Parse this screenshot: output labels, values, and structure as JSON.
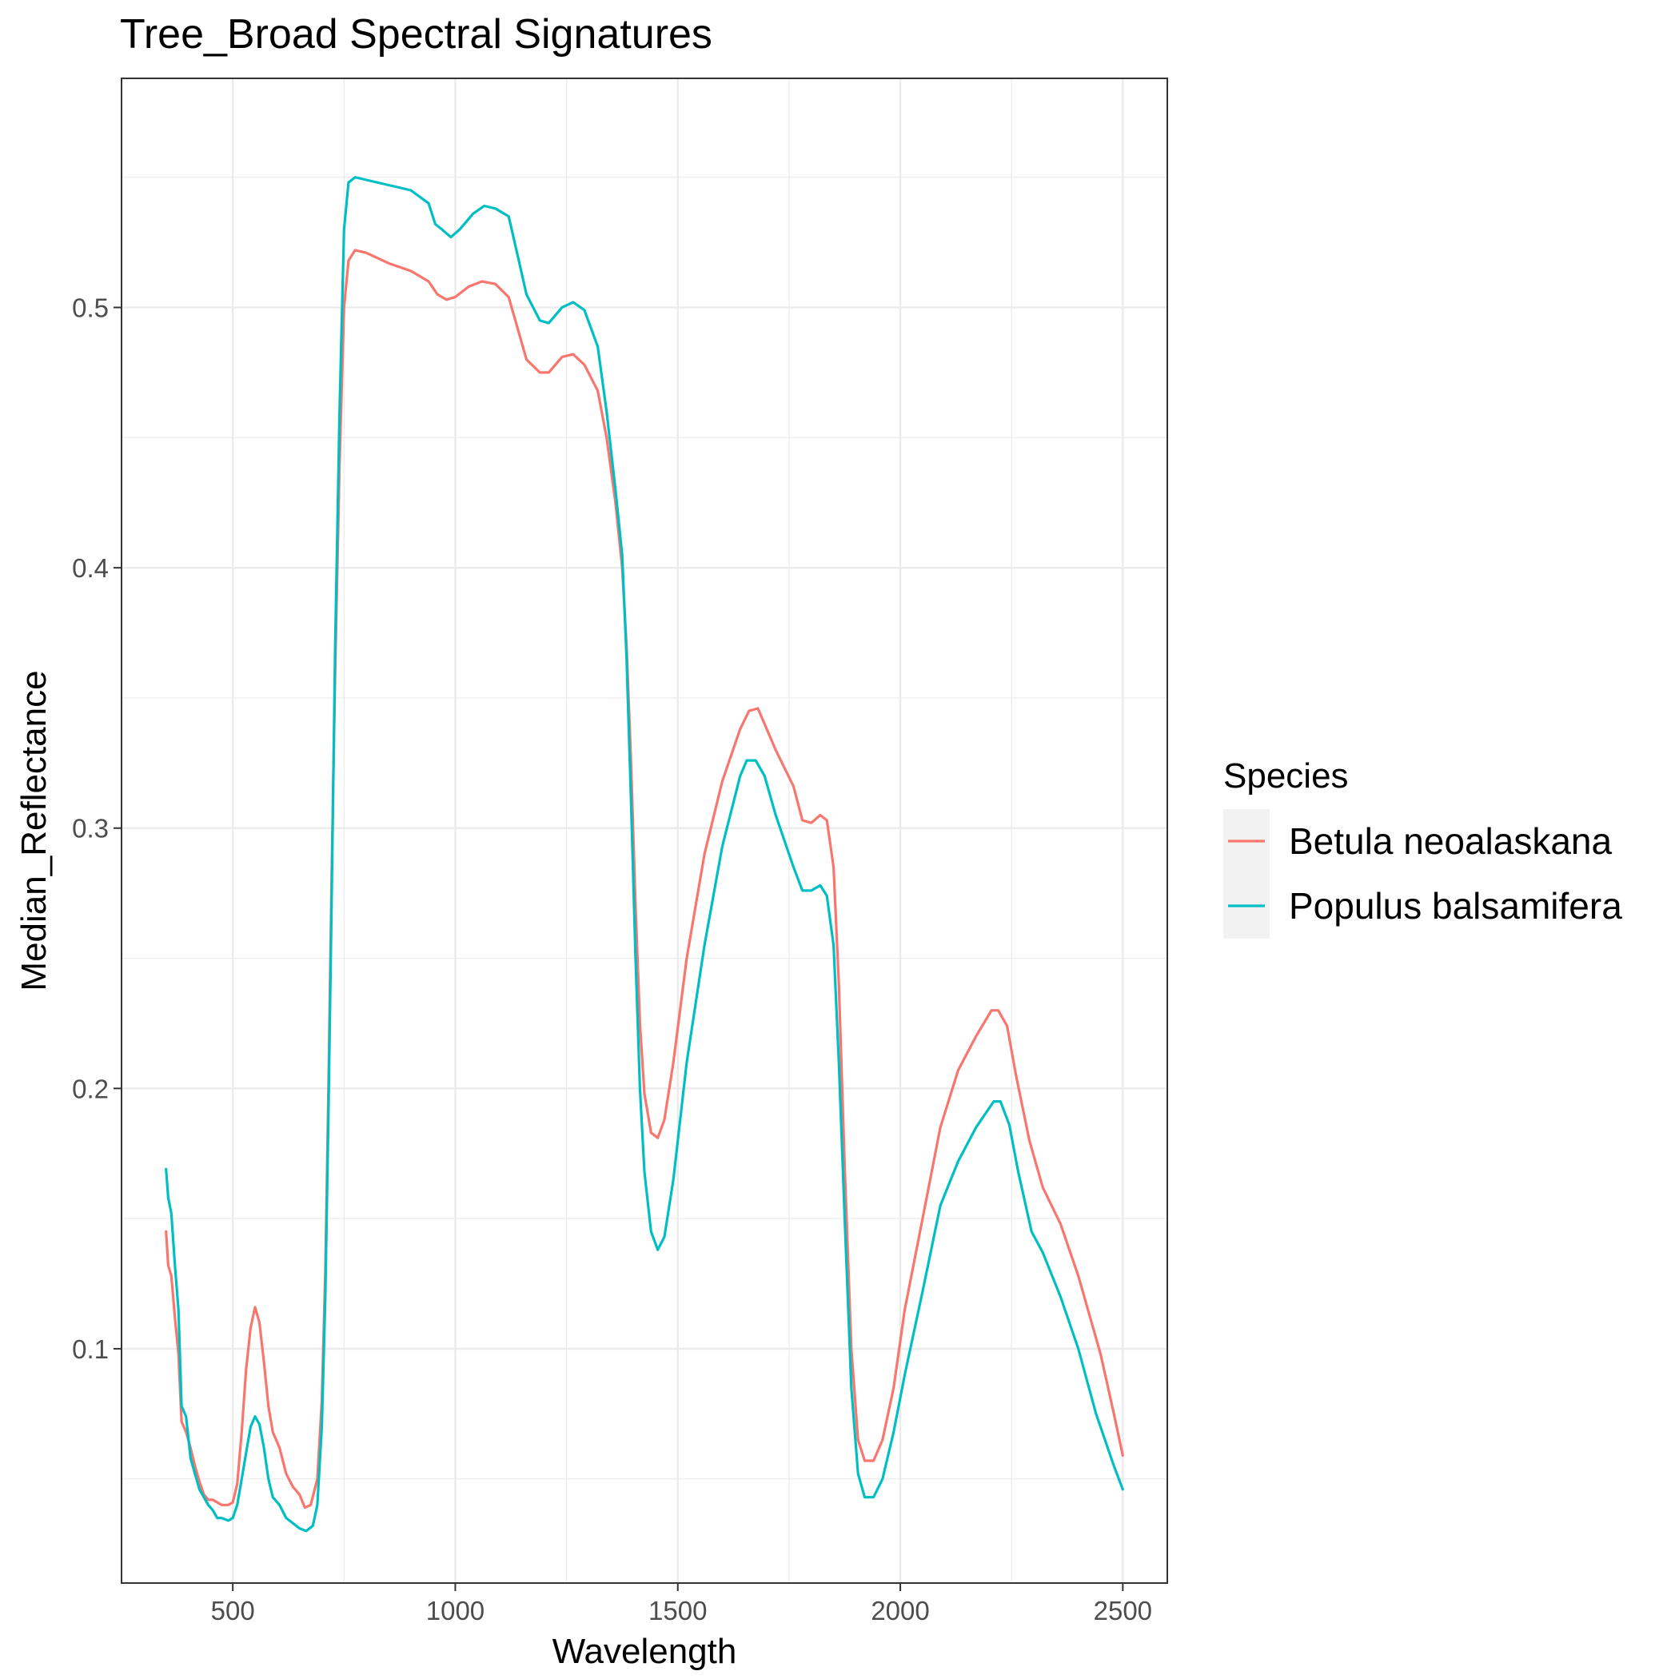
{
  "chart_data": {
    "type": "line",
    "title": "Tree_Broad Spectral Signatures",
    "xlabel": "Wavelength",
    "ylabel": "Median_Reflectance",
    "xlim": [
      250,
      2600
    ],
    "ylim": [
      0.01,
      0.588
    ],
    "x_ticks": [
      {
        "value": 500,
        "label": "500"
      },
      {
        "value": 1000,
        "label": "1000"
      },
      {
        "value": 1500,
        "label": "1500"
      },
      {
        "value": 2000,
        "label": "2000"
      },
      {
        "value": 2500,
        "label": "2500"
      }
    ],
    "y_ticks": [
      {
        "value": 0.1,
        "label": "0.1"
      },
      {
        "value": 0.2,
        "label": "0.2"
      },
      {
        "value": 0.3,
        "label": "0.3"
      },
      {
        "value": 0.4,
        "label": "0.4"
      },
      {
        "value": 0.5,
        "label": "0.5"
      }
    ],
    "grid": true,
    "legend": {
      "title": "Species",
      "position": "right"
    },
    "series": [
      {
        "name": "Betula neoalaskana",
        "color": "#F8766D",
        "points": [
          [
            350,
            0.145
          ],
          [
            355,
            0.132
          ],
          [
            362,
            0.128
          ],
          [
            370,
            0.112
          ],
          [
            378,
            0.098
          ],
          [
            385,
            0.072
          ],
          [
            395,
            0.068
          ],
          [
            405,
            0.062
          ],
          [
            415,
            0.055
          ],
          [
            425,
            0.049
          ],
          [
            435,
            0.044
          ],
          [
            445,
            0.042
          ],
          [
            455,
            0.042
          ],
          [
            465,
            0.041
          ],
          [
            475,
            0.04
          ],
          [
            490,
            0.04
          ],
          [
            500,
            0.041
          ],
          [
            510,
            0.048
          ],
          [
            520,
            0.068
          ],
          [
            530,
            0.092
          ],
          [
            540,
            0.108
          ],
          [
            550,
            0.116
          ],
          [
            560,
            0.11
          ],
          [
            570,
            0.095
          ],
          [
            580,
            0.078
          ],
          [
            590,
            0.068
          ],
          [
            605,
            0.062
          ],
          [
            620,
            0.052
          ],
          [
            635,
            0.047
          ],
          [
            650,
            0.044
          ],
          [
            662,
            0.039
          ],
          [
            675,
            0.04
          ],
          [
            690,
            0.05
          ],
          [
            700,
            0.08
          ],
          [
            708,
            0.13
          ],
          [
            715,
            0.2
          ],
          [
            722,
            0.28
          ],
          [
            730,
            0.36
          ],
          [
            740,
            0.44
          ],
          [
            750,
            0.5
          ],
          [
            760,
            0.518
          ],
          [
            775,
            0.522
          ],
          [
            800,
            0.521
          ],
          [
            850,
            0.517
          ],
          [
            900,
            0.514
          ],
          [
            940,
            0.51
          ],
          [
            960,
            0.505
          ],
          [
            980,
            0.503
          ],
          [
            1000,
            0.504
          ],
          [
            1030,
            0.508
          ],
          [
            1060,
            0.51
          ],
          [
            1090,
            0.509
          ],
          [
            1120,
            0.504
          ],
          [
            1140,
            0.492
          ],
          [
            1160,
            0.48
          ],
          [
            1190,
            0.475
          ],
          [
            1210,
            0.475
          ],
          [
            1240,
            0.481
          ],
          [
            1265,
            0.482
          ],
          [
            1290,
            0.478
          ],
          [
            1320,
            0.468
          ],
          [
            1340,
            0.45
          ],
          [
            1360,
            0.425
          ],
          [
            1375,
            0.4
          ],
          [
            1385,
            0.37
          ],
          [
            1395,
            0.325
          ],
          [
            1405,
            0.27
          ],
          [
            1415,
            0.225
          ],
          [
            1425,
            0.198
          ],
          [
            1440,
            0.183
          ],
          [
            1455,
            0.181
          ],
          [
            1470,
            0.188
          ],
          [
            1490,
            0.21
          ],
          [
            1520,
            0.25
          ],
          [
            1560,
            0.29
          ],
          [
            1600,
            0.318
          ],
          [
            1640,
            0.338
          ],
          [
            1660,
            0.345
          ],
          [
            1680,
            0.346
          ],
          [
            1700,
            0.338
          ],
          [
            1720,
            0.33
          ],
          [
            1760,
            0.316
          ],
          [
            1780,
            0.303
          ],
          [
            1800,
            0.302
          ],
          [
            1820,
            0.305
          ],
          [
            1835,
            0.303
          ],
          [
            1850,
            0.285
          ],
          [
            1862,
            0.24
          ],
          [
            1875,
            0.17
          ],
          [
            1890,
            0.1
          ],
          [
            1905,
            0.065
          ],
          [
            1920,
            0.057
          ],
          [
            1940,
            0.057
          ],
          [
            1960,
            0.065
          ],
          [
            1985,
            0.085
          ],
          [
            2010,
            0.115
          ],
          [
            2050,
            0.15
          ],
          [
            2090,
            0.185
          ],
          [
            2130,
            0.207
          ],
          [
            2170,
            0.22
          ],
          [
            2205,
            0.23
          ],
          [
            2220,
            0.23
          ],
          [
            2240,
            0.224
          ],
          [
            2260,
            0.205
          ],
          [
            2290,
            0.18
          ],
          [
            2320,
            0.162
          ],
          [
            2360,
            0.148
          ],
          [
            2400,
            0.128
          ],
          [
            2450,
            0.098
          ],
          [
            2480,
            0.075
          ],
          [
            2500,
            0.059
          ]
        ]
      },
      {
        "name": "Populus balsamifera",
        "color": "#00BFC4",
        "points": [
          [
            350,
            0.169
          ],
          [
            355,
            0.158
          ],
          [
            362,
            0.152
          ],
          [
            370,
            0.132
          ],
          [
            378,
            0.115
          ],
          [
            385,
            0.078
          ],
          [
            395,
            0.074
          ],
          [
            405,
            0.058
          ],
          [
            415,
            0.052
          ],
          [
            425,
            0.046
          ],
          [
            435,
            0.043
          ],
          [
            445,
            0.04
          ],
          [
            455,
            0.038
          ],
          [
            465,
            0.035
          ],
          [
            475,
            0.035
          ],
          [
            490,
            0.034
          ],
          [
            500,
            0.035
          ],
          [
            510,
            0.04
          ],
          [
            520,
            0.05
          ],
          [
            530,
            0.06
          ],
          [
            540,
            0.07
          ],
          [
            550,
            0.074
          ],
          [
            560,
            0.071
          ],
          [
            570,
            0.062
          ],
          [
            580,
            0.05
          ],
          [
            590,
            0.043
          ],
          [
            605,
            0.04
          ],
          [
            620,
            0.035
          ],
          [
            635,
            0.033
          ],
          [
            650,
            0.031
          ],
          [
            665,
            0.03
          ],
          [
            680,
            0.032
          ],
          [
            690,
            0.04
          ],
          [
            700,
            0.07
          ],
          [
            708,
            0.12
          ],
          [
            715,
            0.19
          ],
          [
            722,
            0.27
          ],
          [
            730,
            0.37
          ],
          [
            740,
            0.46
          ],
          [
            750,
            0.53
          ],
          [
            760,
            0.548
          ],
          [
            775,
            0.55
          ],
          [
            800,
            0.549
          ],
          [
            850,
            0.547
          ],
          [
            900,
            0.545
          ],
          [
            940,
            0.54
          ],
          [
            955,
            0.532
          ],
          [
            970,
            0.53
          ],
          [
            990,
            0.527
          ],
          [
            1010,
            0.53
          ],
          [
            1040,
            0.536
          ],
          [
            1065,
            0.539
          ],
          [
            1090,
            0.538
          ],
          [
            1120,
            0.535
          ],
          [
            1140,
            0.52
          ],
          [
            1160,
            0.505
          ],
          [
            1190,
            0.495
          ],
          [
            1210,
            0.494
          ],
          [
            1240,
            0.5
          ],
          [
            1265,
            0.502
          ],
          [
            1290,
            0.499
          ],
          [
            1320,
            0.485
          ],
          [
            1340,
            0.46
          ],
          [
            1360,
            0.43
          ],
          [
            1375,
            0.405
          ],
          [
            1385,
            0.365
          ],
          [
            1395,
            0.31
          ],
          [
            1405,
            0.25
          ],
          [
            1415,
            0.2
          ],
          [
            1425,
            0.168
          ],
          [
            1440,
            0.145
          ],
          [
            1455,
            0.138
          ],
          [
            1470,
            0.143
          ],
          [
            1490,
            0.165
          ],
          [
            1520,
            0.21
          ],
          [
            1560,
            0.255
          ],
          [
            1600,
            0.293
          ],
          [
            1640,
            0.32
          ],
          [
            1655,
            0.326
          ],
          [
            1675,
            0.326
          ],
          [
            1695,
            0.32
          ],
          [
            1720,
            0.305
          ],
          [
            1760,
            0.285
          ],
          [
            1780,
            0.276
          ],
          [
            1800,
            0.276
          ],
          [
            1820,
            0.278
          ],
          [
            1835,
            0.274
          ],
          [
            1850,
            0.255
          ],
          [
            1862,
            0.21
          ],
          [
            1875,
            0.15
          ],
          [
            1890,
            0.085
          ],
          [
            1905,
            0.052
          ],
          [
            1920,
            0.043
          ],
          [
            1940,
            0.043
          ],
          [
            1960,
            0.05
          ],
          [
            1985,
            0.068
          ],
          [
            2010,
            0.09
          ],
          [
            2050,
            0.122
          ],
          [
            2090,
            0.155
          ],
          [
            2130,
            0.172
          ],
          [
            2170,
            0.185
          ],
          [
            2210,
            0.195
          ],
          [
            2225,
            0.195
          ],
          [
            2245,
            0.186
          ],
          [
            2265,
            0.168
          ],
          [
            2295,
            0.145
          ],
          [
            2320,
            0.137
          ],
          [
            2360,
            0.12
          ],
          [
            2400,
            0.1
          ],
          [
            2440,
            0.075
          ],
          [
            2480,
            0.055
          ],
          [
            2500,
            0.046
          ]
        ]
      }
    ]
  }
}
